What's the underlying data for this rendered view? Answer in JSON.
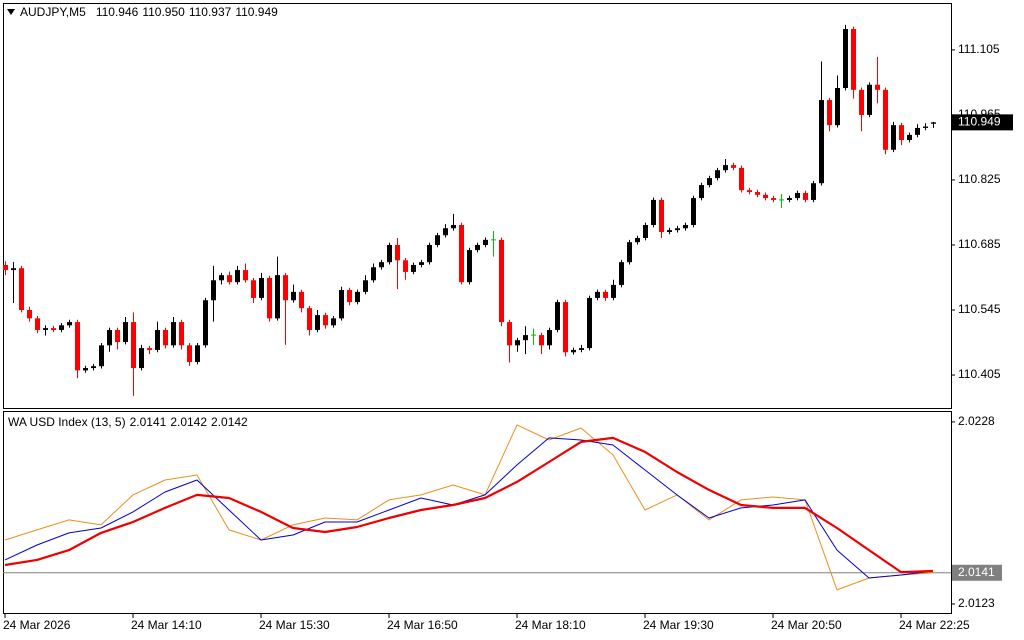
{
  "chart_data": [
    {
      "type": "candlestick",
      "title": "AUDJPY,M5",
      "colors": {
        "up": "#000000",
        "down": "#ff0000",
        "flat": "#00c000"
      },
      "ylim": [
        110.334,
        111.206
      ],
      "yticks": [
        110.405,
        110.545,
        110.685,
        110.825,
        110.965,
        111.105
      ],
      "xticks": [
        {
          "value": 0,
          "label": "24 Mar 2026"
        },
        {
          "value": 16,
          "label": "24 Mar 14:10"
        },
        {
          "value": 32,
          "label": "24 Mar 15:30"
        },
        {
          "value": 48,
          "label": "24 Mar 16:50"
        },
        {
          "value": 64,
          "label": "24 Mar 18:10"
        },
        {
          "value": 80,
          "label": "24 Mar 19:30"
        },
        {
          "value": 96,
          "label": "24 Mar 20:50"
        },
        {
          "value": 112,
          "label": "24 Mar 22:25"
        }
      ],
      "header_labels": [
        "110.946",
        "110.950",
        "110.937",
        "110.949"
      ],
      "candles": [
        [
          110.642,
          110.65,
          110.62,
          110.631
        ],
        [
          110.631,
          110.648,
          110.56,
          110.635
        ],
        [
          110.635,
          110.64,
          110.54,
          110.545
        ],
        [
          110.545,
          110.552,
          110.52,
          110.527
        ],
        [
          110.527,
          110.532,
          110.495,
          110.502
        ],
        [
          110.502,
          110.512,
          110.49,
          110.506
        ],
        [
          110.506,
          110.511,
          110.497,
          110.502
        ],
        [
          110.502,
          110.517,
          110.497,
          110.512
        ],
        [
          110.512,
          110.524,
          110.507,
          110.519
        ],
        [
          110.519,
          110.524,
          110.398,
          110.415
        ],
        [
          110.415,
          110.425,
          110.41,
          110.42
        ],
        [
          110.42,
          110.429,
          110.415,
          110.424
        ],
        [
          110.424,
          110.474,
          110.419,
          110.469
        ],
        [
          110.469,
          110.507,
          110.455,
          110.502
        ],
        [
          110.502,
          110.507,
          110.46,
          110.476
        ],
        [
          110.476,
          110.53,
          110.471,
          110.519
        ],
        [
          110.519,
          110.54,
          110.36,
          110.42
        ],
        [
          110.42,
          110.47,
          110.415,
          110.463
        ],
        [
          110.463,
          110.468,
          110.45,
          110.459
        ],
        [
          110.459,
          110.52,
          110.454,
          110.502
        ],
        [
          110.502,
          110.507,
          110.462,
          110.469
        ],
        [
          110.469,
          110.53,
          110.464,
          110.519
        ],
        [
          110.519,
          110.524,
          110.46,
          110.469
        ],
        [
          110.469,
          110.474,
          110.425,
          110.433
        ],
        [
          110.433,
          110.474,
          110.428,
          110.469
        ],
        [
          110.469,
          110.571,
          110.464,
          110.566
        ],
        [
          110.566,
          110.64,
          110.52,
          110.609
        ],
        [
          110.609,
          110.625,
          110.6,
          110.62
        ],
        [
          110.62,
          110.628,
          110.6,
          110.605
        ],
        [
          110.605,
          110.64,
          110.6,
          110.631
        ],
        [
          110.631,
          110.645,
          110.604,
          110.609
        ],
        [
          110.609,
          110.614,
          110.56,
          110.571
        ],
        [
          110.571,
          110.625,
          110.566,
          110.614
        ],
        [
          110.614,
          110.619,
          110.52,
          110.527
        ],
        [
          110.527,
          110.66,
          110.522,
          110.62
        ],
        [
          110.62,
          110.625,
          110.47,
          110.566
        ],
        [
          110.566,
          110.6,
          110.561,
          110.584
        ],
        [
          110.584,
          110.589,
          110.54,
          110.549
        ],
        [
          110.549,
          110.554,
          110.49,
          110.502
        ],
        [
          110.502,
          110.545,
          110.497,
          110.534
        ],
        [
          110.534,
          110.539,
          110.505,
          110.512
        ],
        [
          110.512,
          110.532,
          110.507,
          110.527
        ],
        [
          110.527,
          110.595,
          110.522,
          110.588
        ],
        [
          110.588,
          110.593,
          110.555,
          110.562
        ],
        [
          110.562,
          110.589,
          110.557,
          110.584
        ],
        [
          110.584,
          110.62,
          110.579,
          110.609
        ],
        [
          110.609,
          110.645,
          110.604,
          110.637
        ],
        [
          110.637,
          110.653,
          110.632,
          110.648
        ],
        [
          110.648,
          110.69,
          110.643,
          110.685
        ],
        [
          110.685,
          110.7,
          110.59,
          110.652
        ],
        [
          110.652,
          110.657,
          110.61,
          110.627
        ],
        [
          110.627,
          110.647,
          110.622,
          110.642
        ],
        [
          110.642,
          110.653,
          110.637,
          110.648
        ],
        [
          110.648,
          110.69,
          110.643,
          110.685
        ],
        [
          110.685,
          110.711,
          110.68,
          110.706
        ],
        [
          110.706,
          110.73,
          110.701,
          110.721
        ],
        [
          110.721,
          110.752,
          110.716,
          110.728
        ],
        [
          110.728,
          110.733,
          110.6,
          110.605
        ],
        [
          110.605,
          110.679,
          110.6,
          110.674
        ],
        [
          110.674,
          110.69,
          110.669,
          110.685
        ],
        [
          110.685,
          110.701,
          110.68,
          110.696
        ],
        [
          110.696,
          110.715,
          110.66,
          110.696
        ],
        [
          110.696,
          110.701,
          110.51,
          110.519
        ],
        [
          110.519,
          110.524,
          110.432,
          110.469
        ],
        [
          110.469,
          110.485,
          110.455,
          110.48
        ],
        [
          110.48,
          110.51,
          110.45,
          110.491
        ],
        [
          110.491,
          110.505,
          110.47,
          110.491
        ],
        [
          110.491,
          110.496,
          110.45,
          110.469
        ],
        [
          110.469,
          110.507,
          110.46,
          110.502
        ],
        [
          110.502,
          110.567,
          110.497,
          110.562
        ],
        [
          110.562,
          110.567,
          110.445,
          110.454
        ],
        [
          110.454,
          110.464,
          110.449,
          110.459
        ],
        [
          110.459,
          110.47,
          110.454,
          110.463
        ],
        [
          110.463,
          110.576,
          110.458,
          110.571
        ],
        [
          110.571,
          110.589,
          110.566,
          110.584
        ],
        [
          110.584,
          110.589,
          110.565,
          110.571
        ],
        [
          110.571,
          110.61,
          110.566,
          110.599
        ],
        [
          110.599,
          110.653,
          110.594,
          110.648
        ],
        [
          110.648,
          110.696,
          110.643,
          110.691
        ],
        [
          110.691,
          110.705,
          110.686,
          110.7
        ],
        [
          110.7,
          110.733,
          110.695,
          110.728
        ],
        [
          110.728,
          110.787,
          110.723,
          110.782
        ],
        [
          110.782,
          110.787,
          110.7,
          110.713
        ],
        [
          110.713,
          110.722,
          110.708,
          110.717
        ],
        [
          110.717,
          110.726,
          110.712,
          110.721
        ],
        [
          110.721,
          110.733,
          110.716,
          110.728
        ],
        [
          110.728,
          110.791,
          110.723,
          110.786
        ],
        [
          110.786,
          110.819,
          110.781,
          110.814
        ],
        [
          110.814,
          110.834,
          110.809,
          110.829
        ],
        [
          110.829,
          110.851,
          110.824,
          110.846
        ],
        [
          110.846,
          110.87,
          110.841,
          110.857
        ],
        [
          110.857,
          110.862,
          110.846,
          110.851
        ],
        [
          110.851,
          110.856,
          110.798,
          110.803
        ],
        [
          110.803,
          110.808,
          110.794,
          110.799
        ],
        [
          110.799,
          110.804,
          110.788,
          110.793
        ],
        [
          110.793,
          110.798,
          110.781,
          110.786
        ],
        [
          110.786,
          110.791,
          110.777,
          110.782
        ],
        [
          110.782,
          110.795,
          110.765,
          110.782
        ],
        [
          110.782,
          110.791,
          110.777,
          110.786
        ],
        [
          110.786,
          110.802,
          110.781,
          110.797
        ],
        [
          110.797,
          110.802,
          110.777,
          110.782
        ],
        [
          110.782,
          110.823,
          110.777,
          110.818
        ],
        [
          110.818,
          111.08,
          110.813,
          110.997
        ],
        [
          110.997,
          111.002,
          110.93,
          110.943
        ],
        [
          110.943,
          111.05,
          110.938,
          111.023
        ],
        [
          111.023,
          111.159,
          111.018,
          111.15
        ],
        [
          111.15,
          111.155,
          111.0,
          111.019
        ],
        [
          111.019,
          111.024,
          110.93,
          110.965
        ],
        [
          110.965,
          111.035,
          110.96,
          111.03
        ],
        [
          111.03,
          111.09,
          110.99,
          111.019
        ],
        [
          111.019,
          111.024,
          110.88,
          110.89
        ],
        [
          110.89,
          110.95,
          110.885,
          110.943
        ],
        [
          110.943,
          110.948,
          110.9,
          110.911
        ],
        [
          110.911,
          110.927,
          110.906,
          110.922
        ],
        [
          110.922,
          110.945,
          110.917,
          110.937
        ],
        [
          110.937,
          110.947,
          110.932,
          110.94
        ],
        [
          110.946,
          110.95,
          110.937,
          110.949
        ]
      ]
    },
    {
      "type": "line",
      "title": "WA USD Index (13, 5)",
      "ylim": [
        2.01178,
        2.02343
      ],
      "yticks": [
        2.0123,
        2.0228
      ],
      "x": [
        0,
        4,
        8,
        12,
        16,
        20,
        24,
        28,
        32,
        36,
        40,
        44,
        48,
        52,
        56,
        60,
        64,
        68,
        72,
        76,
        80,
        84,
        88,
        92,
        96,
        100,
        104,
        108,
        112,
        116
      ],
      "series": [
        {
          "color": "#e8901c",
          "width": 1,
          "values": [
            2.01599,
            2.01657,
            2.01715,
            2.01686,
            2.01859,
            2.01945,
            2.01974,
            2.01657,
            2.01599,
            2.01686,
            2.01726,
            2.01715,
            2.0183,
            2.01859,
            2.01916,
            2.01859,
            2.02263,
            2.02176,
            2.02245,
            2.0209,
            2.01772,
            2.01859,
            2.01715,
            2.0183,
            2.01847,
            2.0183,
            2.01311,
            2.0138,
            2.01397,
            2.0141
          ]
        },
        {
          "color": "#0000cc",
          "width": 1,
          "values": [
            2.01484,
            2.0157,
            2.0164,
            2.01668,
            2.01761,
            2.01876,
            2.01945,
            2.01772,
            2.01599,
            2.01628,
            2.01703,
            2.01703,
            2.01772,
            2.01841,
            2.01801,
            2.01859,
            2.02032,
            2.02188,
            2.02176,
            2.02147,
            2.02003,
            2.01859,
            2.01726,
            2.01784,
            2.01801,
            2.0183,
            2.01541,
            2.0138,
            2.01397,
            2.0142
          ]
        },
        {
          "color": "#ee0000",
          "width": 2.2,
          "values": [
            2.01455,
            2.01484,
            2.01541,
            2.0164,
            2.01703,
            2.01784,
            2.01859,
            2.01841,
            2.01761,
            2.01668,
            2.01645,
            2.01674,
            2.01726,
            2.01772,
            2.01801,
            2.01841,
            2.01934,
            2.02049,
            2.02165,
            2.02188,
            2.02107,
            2.01991,
            2.01888,
            2.01801,
            2.01784,
            2.01784,
            2.01668,
            2.01541,
            2.01414,
            2.0142
          ]
        }
      ]
    }
  ]
}
